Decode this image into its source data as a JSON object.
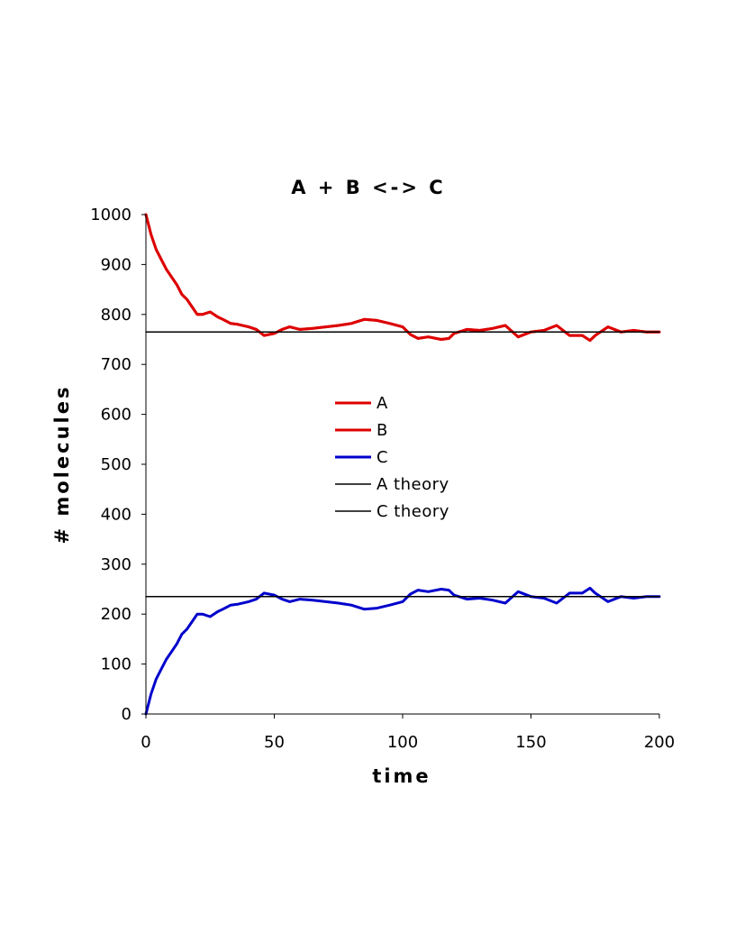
{
  "chart_data": {
    "type": "line",
    "title": "A + B <-> C",
    "xlabel": "time",
    "ylabel": "# molecules",
    "xlim": [
      0,
      200
    ],
    "ylim": [
      0,
      1000
    ],
    "xticks": [
      0,
      50,
      100,
      150,
      200
    ],
    "yticks": [
      0,
      100,
      200,
      300,
      400,
      500,
      600,
      700,
      800,
      900,
      1000
    ],
    "grid": false,
    "legend_position": "center",
    "series": [
      {
        "name": "A",
        "color": "#dd0000",
        "style": "thick",
        "x": [
          0,
          2,
          4,
          6,
          8,
          10,
          12,
          14,
          16,
          18,
          20,
          22,
          25,
          28,
          30,
          33,
          36,
          40,
          43,
          46,
          50,
          53,
          56,
          60,
          65,
          70,
          75,
          80,
          85,
          90,
          95,
          100,
          103,
          106,
          110,
          115,
          118,
          120,
          125,
          130,
          135,
          140,
          145,
          150,
          155,
          160,
          165,
          170,
          173,
          175,
          180,
          185,
          190,
          195,
          200
        ],
        "y": [
          1000,
          960,
          930,
          910,
          890,
          875,
          860,
          840,
          830,
          815,
          800,
          800,
          805,
          795,
          790,
          782,
          780,
          775,
          770,
          758,
          762,
          770,
          775,
          770,
          772,
          775,
          778,
          782,
          790,
          788,
          782,
          775,
          760,
          752,
          755,
          750,
          752,
          762,
          770,
          768,
          772,
          778,
          755,
          765,
          768,
          778,
          758,
          758,
          748,
          758,
          775,
          765,
          768,
          765,
          765
        ]
      },
      {
        "name": "B",
        "color": "#dd0000",
        "style": "thick",
        "x": [
          0,
          2,
          4,
          6,
          8,
          10,
          12,
          14,
          16,
          18,
          20,
          22,
          25,
          28,
          30,
          33,
          36,
          40,
          43,
          46,
          50,
          53,
          56,
          60,
          65,
          70,
          75,
          80,
          85,
          90,
          95,
          100,
          103,
          106,
          110,
          115,
          118,
          120,
          125,
          130,
          135,
          140,
          145,
          150,
          155,
          160,
          165,
          170,
          173,
          175,
          180,
          185,
          190,
          195,
          200
        ],
        "y": [
          1000,
          960,
          930,
          910,
          890,
          875,
          860,
          840,
          830,
          815,
          800,
          800,
          805,
          795,
          790,
          782,
          780,
          775,
          770,
          758,
          762,
          770,
          775,
          770,
          772,
          775,
          778,
          782,
          790,
          788,
          782,
          775,
          760,
          752,
          755,
          750,
          752,
          762,
          770,
          768,
          772,
          778,
          755,
          765,
          768,
          778,
          758,
          758,
          748,
          758,
          775,
          765,
          768,
          765,
          765
        ]
      },
      {
        "name": "C",
        "color": "#0000cc",
        "style": "thick",
        "x": [
          0,
          2,
          4,
          6,
          8,
          10,
          12,
          14,
          16,
          18,
          20,
          22,
          25,
          28,
          30,
          33,
          36,
          40,
          43,
          46,
          50,
          53,
          56,
          60,
          65,
          70,
          75,
          80,
          85,
          90,
          95,
          100,
          103,
          106,
          110,
          115,
          118,
          120,
          125,
          130,
          135,
          140,
          145,
          150,
          155,
          160,
          165,
          170,
          173,
          175,
          180,
          185,
          190,
          195,
          200
        ],
        "y": [
          0,
          40,
          70,
          90,
          110,
          125,
          140,
          160,
          170,
          185,
          200,
          200,
          195,
          205,
          210,
          218,
          220,
          225,
          230,
          242,
          238,
          230,
          225,
          230,
          228,
          225,
          222,
          218,
          210,
          212,
          218,
          225,
          240,
          248,
          245,
          250,
          248,
          238,
          230,
          232,
          228,
          222,
          245,
          235,
          232,
          222,
          242,
          242,
          252,
          242,
          225,
          235,
          232,
          235,
          235
        ]
      },
      {
        "name": "A theory",
        "color": "#000000",
        "style": "thin",
        "x": [
          0,
          200
        ],
        "y": [
          765,
          765
        ]
      },
      {
        "name": "C theory",
        "color": "#000000",
        "style": "thin",
        "x": [
          0,
          200
        ],
        "y": [
          235,
          235
        ]
      }
    ]
  }
}
